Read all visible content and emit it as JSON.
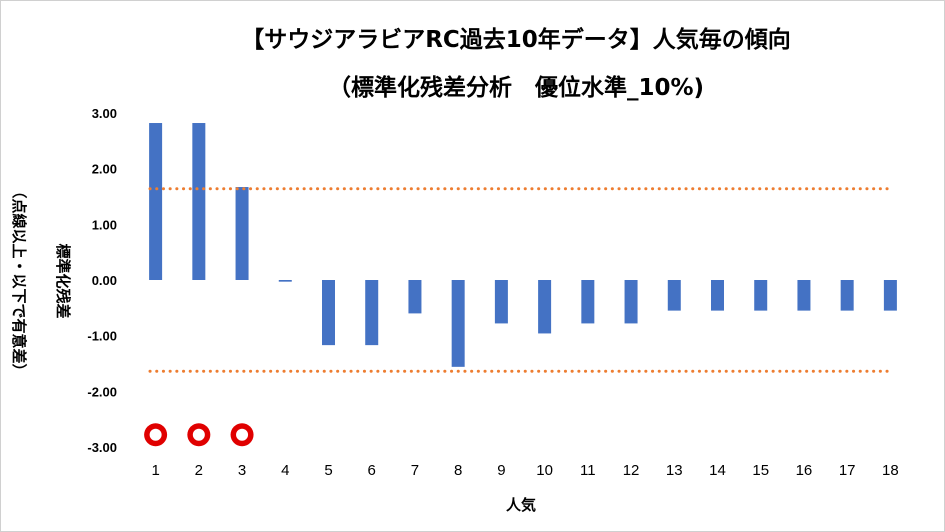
{
  "chart_data": {
    "type": "bar",
    "title": "【サウジアラビアRC過去10年データ】人気毎の傾向",
    "subtitle": "（標準化残差分析　優位水準_10%)",
    "xlabel": "人気",
    "ylabel": "標準化残差",
    "ylabel_note": "（点線以上・以下で有意差）",
    "categories": [
      "1",
      "2",
      "3",
      "4",
      "5",
      "6",
      "7",
      "8",
      "9",
      "10",
      "11",
      "12",
      "13",
      "14",
      "15",
      "16",
      "17",
      "18"
    ],
    "series": [
      {
        "values": [
          2.82,
          2.82,
          1.67,
          -0.03,
          -1.17,
          -1.17,
          -0.6,
          -1.56,
          -0.78,
          -0.96,
          -0.78,
          -0.78,
          -0.55,
          -0.55,
          -0.55,
          -0.55,
          -0.55,
          -0.55
        ]
      }
    ],
    "reference_lines": [
      1.64,
      -1.64
    ],
    "markers": {
      "categories": [
        "1",
        "2",
        "3"
      ],
      "y": -2.78,
      "symbol": "circle"
    },
    "ylim": [
      -3.0,
      3.0
    ],
    "yticks": [
      "3.00",
      "2.00",
      "1.00",
      "0.00",
      "-1.00",
      "-2.00",
      "-3.00"
    ],
    "grid": false,
    "colors": {
      "bar": "#4472c4",
      "reference_line": "#ed7d31",
      "marker_ring": "#e00000",
      "marker_fill": "#ffffff"
    }
  }
}
